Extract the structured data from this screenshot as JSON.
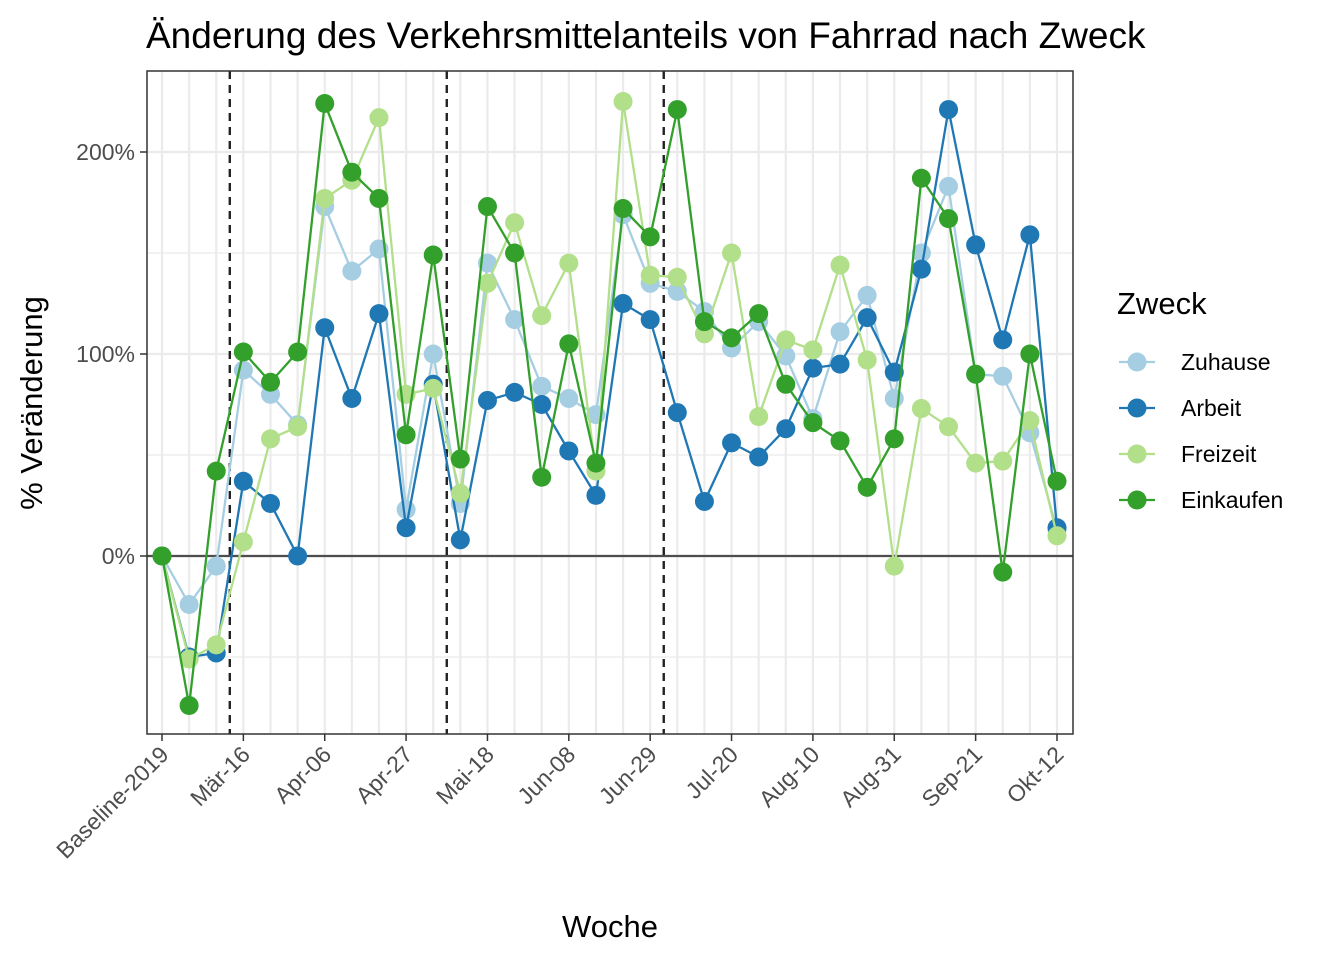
{
  "chart_data": {
    "type": "line",
    "title": "Änderung des Verkehrsmittelanteils von Fahrrad nach Zweck",
    "xlabel": "Woche",
    "ylabel": "% Veränderung",
    "y_tick_labels": [
      "0%",
      "100%",
      "200%"
    ],
    "y_ticks": [
      0,
      100,
      200
    ],
    "ylim": [
      -88,
      240
    ],
    "x_tick_labels": [
      "Baseline-2019",
      "Mär-16",
      "Apr-06",
      "Apr-27",
      "Mai-18",
      "Jun-08",
      "Jun-29",
      "Jul-20",
      "Aug-10",
      "Aug-31",
      "Sep-21",
      "Okt-12"
    ],
    "x_tick_indices": [
      0,
      3,
      6,
      9,
      12,
      15,
      18,
      21,
      24,
      27,
      30,
      33
    ],
    "n_points": 34,
    "vlines_after_index": [
      2.5,
      10.5,
      18.5
    ],
    "hline": 0,
    "grid": true,
    "legend_title": "Zweck",
    "legend_position": "right",
    "series": [
      {
        "name": "Zuhause",
        "color": "#a6cee3",
        "values": [
          0,
          -24,
          -5,
          92,
          80,
          65,
          173,
          141,
          152,
          23,
          100,
          26,
          145,
          117,
          84,
          78,
          70,
          169,
          135,
          131,
          121,
          103,
          116,
          99,
          68,
          111,
          129,
          78,
          150,
          183,
          90,
          89,
          61,
          13
        ]
      },
      {
        "name": "Arbeit",
        "color": "#1f78b4",
        "values": [
          0,
          -50,
          -48,
          37,
          26,
          0,
          113,
          78,
          120,
          14,
          85,
          8,
          77,
          81,
          75,
          52,
          30,
          125,
          117,
          71,
          27,
          56,
          49,
          63,
          93,
          95,
          118,
          91,
          142,
          221,
          154,
          107,
          159,
          14
        ]
      },
      {
        "name": "Freizeit",
        "color": "#b2df8a",
        "values": [
          0,
          -51,
          -44,
          7,
          58,
          64,
          177,
          186,
          217,
          80,
          83,
          31,
          135,
          165,
          119,
          145,
          42,
          225,
          139,
          138,
          110,
          150,
          69,
          107,
          102,
          144,
          97,
          -5,
          73,
          64,
          46,
          47,
          67,
          10
        ]
      },
      {
        "name": "Einkaufen",
        "color": "#33a02c",
        "values": [
          0,
          -74,
          42,
          101,
          86,
          101,
          224,
          190,
          177,
          60,
          149,
          48,
          173,
          150,
          39,
          105,
          46,
          172,
          158,
          221,
          116,
          108,
          120,
          85,
          66,
          57,
          34,
          58,
          187,
          167,
          90,
          -8,
          100,
          37
        ]
      }
    ]
  }
}
